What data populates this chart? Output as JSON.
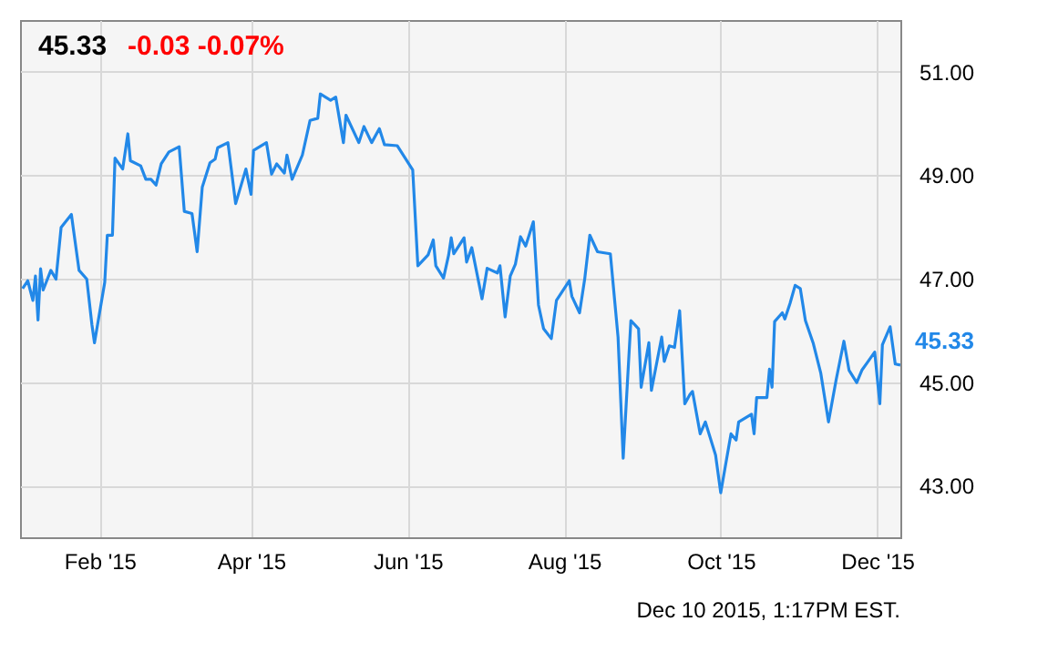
{
  "chart_data": {
    "type": "line",
    "title": "45.33",
    "subtitle": "-0.03 -0.07%",
    "x": [
      "2015-01-02",
      "2015-01-04",
      "2015-01-06",
      "2015-01-07",
      "2015-01-08",
      "2015-01-09",
      "2015-01-10",
      "2015-01-13",
      "2015-01-15",
      "2015-01-17",
      "2015-01-21",
      "2015-01-24",
      "2015-01-27",
      "2015-01-29",
      "2015-01-30",
      "2015-02-03",
      "2015-02-04",
      "2015-02-06",
      "2015-02-07",
      "2015-02-10",
      "2015-02-12",
      "2015-02-13",
      "2015-02-17",
      "2015-02-19",
      "2015-02-21",
      "2015-02-23",
      "2015-02-25",
      "2015-02-28",
      "2015-03-04",
      "2015-03-06",
      "2015-03-09",
      "2015-03-11",
      "2015-03-13",
      "2015-03-16",
      "2015-03-18",
      "2015-03-19",
      "2015-03-23",
      "2015-03-26",
      "2015-03-30",
      "2015-04-01",
      "2015-04-02",
      "2015-04-07",
      "2015-04-09",
      "2015-04-11",
      "2015-04-14",
      "2015-04-15",
      "2015-04-17",
      "2015-04-21",
      "2015-04-24",
      "2015-04-27",
      "2015-04-28",
      "2015-05-02",
      "2015-05-04",
      "2015-05-07",
      "2015-05-08",
      "2015-05-13",
      "2015-05-15",
      "2015-05-18",
      "2015-05-21",
      "2015-05-23",
      "2015-05-28",
      "2015-06-03",
      "2015-06-05",
      "2015-06-09",
      "2015-06-11",
      "2015-06-12",
      "2015-06-15",
      "2015-06-17",
      "2015-06-18",
      "2015-06-19",
      "2015-06-23",
      "2015-06-24",
      "2015-06-26",
      "2015-06-30",
      "2015-07-02",
      "2015-07-06",
      "2015-07-07",
      "2015-07-09",
      "2015-07-11",
      "2015-07-13",
      "2015-07-15",
      "2015-07-17",
      "2015-07-20",
      "2015-07-22",
      "2015-07-24",
      "2015-07-27",
      "2015-07-29",
      "2015-08-03",
      "2015-08-04",
      "2015-08-07",
      "2015-08-09",
      "2015-08-11",
      "2015-08-14",
      "2015-08-19",
      "2015-08-22",
      "2015-08-24",
      "2015-08-27",
      "2015-08-30",
      "2015-08-31",
      "2015-09-03",
      "2015-09-04",
      "2015-09-08",
      "2015-09-09",
      "2015-09-11",
      "2015-09-13",
      "2015-09-15",
      "2015-09-17",
      "2015-09-19",
      "2015-09-20",
      "2015-09-23",
      "2015-09-25",
      "2015-09-29",
      "2015-10-01",
      "2015-10-05",
      "2015-10-07",
      "2015-10-08",
      "2015-10-13",
      "2015-10-14",
      "2015-10-15",
      "2015-10-19",
      "2015-10-20",
      "2015-10-21",
      "2015-10-22",
      "2015-10-25",
      "2015-10-26",
      "2015-10-28",
      "2015-10-30",
      "2015-11-01",
      "2015-11-03",
      "2015-11-06",
      "2015-11-09",
      "2015-11-12",
      "2015-11-15",
      "2015-11-18",
      "2015-11-20",
      "2015-11-23",
      "2015-11-25",
      "2015-11-27",
      "2015-11-30",
      "2015-12-02",
      "2015-12-03",
      "2015-12-06",
      "2015-12-08",
      "2015-12-10"
    ],
    "series": [
      {
        "color": "#2288e8",
        "values": [
          46.81,
          46.96,
          46.58,
          47.05,
          46.2,
          47.19,
          46.78,
          47.16,
          46.99,
          47.99,
          48.24,
          47.16,
          46.99,
          46.11,
          45.76,
          46.93,
          47.84,
          47.84,
          49.33,
          49.12,
          49.8,
          49.28,
          49.18,
          48.92,
          48.92,
          48.81,
          49.22,
          49.45,
          49.55,
          48.3,
          48.26,
          47.52,
          48.77,
          49.24,
          49.31,
          49.53,
          49.63,
          48.45,
          49.12,
          48.63,
          49.48,
          49.63,
          49.02,
          49.22,
          49.04,
          49.39,
          48.92,
          49.39,
          50.06,
          50.1,
          50.57,
          50.45,
          50.51,
          49.63,
          50.16,
          49.63,
          49.94,
          49.63,
          49.9,
          49.59,
          49.57,
          49.1,
          47.25,
          47.46,
          47.75,
          47.25,
          47.01,
          47.46,
          47.79,
          47.48,
          47.79,
          47.32,
          47.6,
          46.61,
          47.2,
          47.11,
          47.25,
          46.26,
          47.05,
          47.28,
          47.81,
          47.63,
          48.1,
          46.49,
          46.03,
          45.84,
          46.58,
          46.96,
          46.66,
          46.34,
          46.99,
          47.84,
          47.52,
          47.48,
          45.87,
          43.53,
          46.19,
          46.03,
          44.9,
          45.76,
          44.84,
          45.87,
          45.4,
          45.7,
          45.67,
          46.38,
          44.58,
          44.76,
          44.82,
          44.0,
          44.23,
          43.59,
          42.86,
          44.0,
          43.88,
          44.23,
          44.38,
          44.0,
          44.7,
          44.7,
          45.25,
          44.9,
          46.17,
          46.34,
          46.22,
          46.52,
          46.87,
          46.81,
          46.19,
          45.76,
          45.17,
          44.23,
          45.05,
          45.79,
          45.23,
          44.99,
          45.23,
          45.37,
          45.58,
          44.58,
          45.72,
          46.07,
          45.35,
          45.33
        ]
      }
    ],
    "xlim": [
      "2015-01-01",
      "2015-12-10"
    ],
    "xticks": [
      {
        "value": "2015-02-01",
        "label": "Feb '15"
      },
      {
        "value": "2015-04-01",
        "label": "Apr '15"
      },
      {
        "value": "2015-06-01",
        "label": "Jun '15"
      },
      {
        "value": "2015-08-01",
        "label": "Aug '15"
      },
      {
        "value": "2015-10-01",
        "label": "Oct '15"
      },
      {
        "value": "2015-12-01",
        "label": "Dec '15"
      }
    ],
    "ylim": [
      42,
      52
    ],
    "yticks": [
      {
        "value": 43,
        "label": "43.00"
      },
      {
        "value": 45,
        "label": "45.00"
      },
      {
        "value": 47,
        "label": "47.00"
      },
      {
        "value": 49,
        "label": "49.00"
      },
      {
        "value": 51,
        "label": "51.00"
      }
    ],
    "grid": true,
    "marker": "none",
    "line_style": "solid",
    "annotations": [
      {
        "text": "45.33",
        "x": "2015-12-10",
        "y": 45.33
      },
      "Dec 10 2015, 1:17PM EST."
    ]
  }
}
